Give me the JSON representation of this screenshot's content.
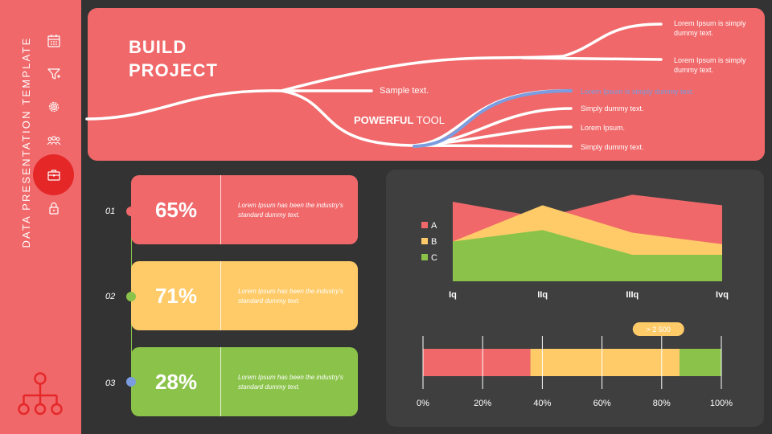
{
  "sidebar": {
    "title": "DATA PRESENTATION TEMPLATE",
    "icons": [
      "calendar-icon",
      "funnel-icon",
      "gear-icon",
      "team-icon",
      "briefcase-icon",
      "lock-icon"
    ],
    "active_icon": "briefcase-icon",
    "bottom_icon": "org-chart-icon"
  },
  "hero": {
    "title_line1": "BUILD",
    "title_line2": "PROJECT",
    "sample_text": "Sample text.",
    "powerful_bold": "POWERFUL",
    "powerful_rest": " TOOL",
    "branch1": "Lorem Ipsum is simply dummy text.",
    "branch2": "Lorem Ipsum is simply dummy text.",
    "branch3": "Lorem Ipsum is simply dummy text.",
    "branch4": "Simply dummy text.",
    "branch5": "Lorem Ipsum.",
    "branch6": "Simply dummy text."
  },
  "cards": [
    {
      "num": "01",
      "pct": "65%",
      "desc": "Lorem Ipsum has been the industry's standard dummy text.",
      "color": "#F0686A",
      "dot_color": "#F0686A"
    },
    {
      "num": "02",
      "pct": "71%",
      "desc": "Lorem Ipsum has been the industry's standard dummy text.",
      "color": "#FFCB69",
      "dot_color": "#8BC34A"
    },
    {
      "num": "03",
      "pct": "28%",
      "desc": "Lorem Ipsum has been the industry's standard dummy text.",
      "color": "#8BC34A",
      "dot_color": "#7B9DE0"
    }
  ],
  "chart_data": [
    {
      "type": "area",
      "categories": [
        "Iq",
        "IIq",
        "IIIq",
        "Ivq"
      ],
      "series": [
        {
          "name": "A",
          "values": [
            90,
            72,
            98,
            86
          ],
          "color": "#F0686A"
        },
        {
          "name": "B",
          "values": [
            45,
            86,
            55,
            42
          ],
          "color": "#FFCB69"
        },
        {
          "name": "C",
          "values": [
            45,
            58,
            30,
            30
          ],
          "color": "#8BC34A"
        }
      ],
      "ylim": [
        0,
        100
      ],
      "legend": "left",
      "grid": false
    },
    {
      "type": "bar",
      "orientation": "horizontal-stacked",
      "segments": [
        {
          "value": 36,
          "color": "#F0686A"
        },
        {
          "value": 50,
          "color": "#FFCB69"
        },
        {
          "value": 14,
          "color": "#8BC34A"
        }
      ],
      "ticks": [
        "0%",
        "20%",
        "40%",
        "60%",
        "80%",
        "100%"
      ],
      "xlim": [
        0,
        100
      ],
      "annotation": {
        "text": "> 2 500",
        "at": 80
      },
      "grid": true
    }
  ]
}
